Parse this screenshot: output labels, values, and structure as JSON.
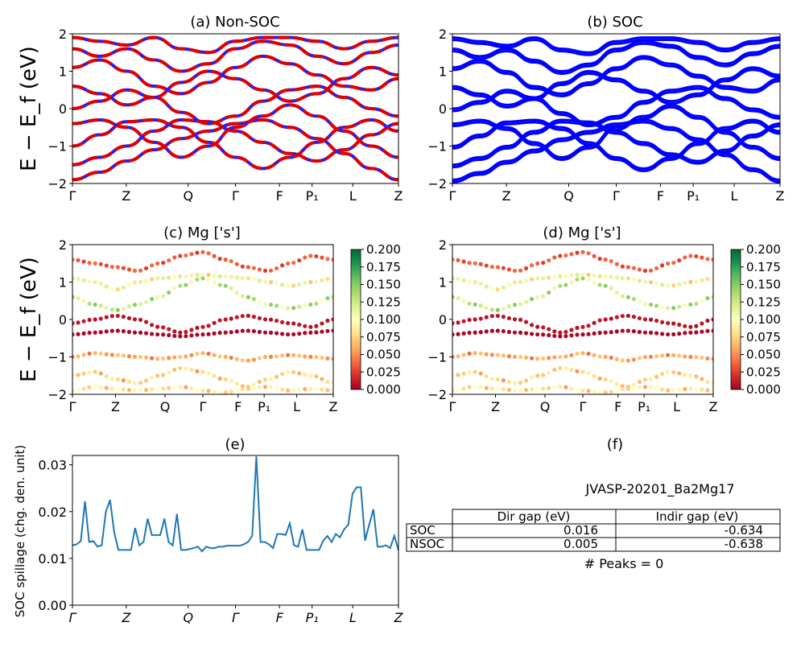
{
  "figure": {
    "ylabel": "E − E_f (eV)",
    "kpath_labels": [
      "Γ",
      "Z",
      "Q",
      "Γ",
      "F",
      "P₁",
      "L",
      "Z"
    ]
  },
  "colors": {
    "nonsoc_up": "#e00000",
    "nonsoc_dn": "#2020ff",
    "soc": "#0000ff",
    "line_e": "#1f77b4",
    "colormap": [
      "#a50026",
      "#d73027",
      "#f46d43",
      "#fdae61",
      "#fee08b",
      "#ffffbf",
      "#d9ef8b",
      "#a6d96a",
      "#66bd63",
      "#1a9850",
      "#006837"
    ]
  },
  "chart_data": [
    {
      "id": "a",
      "type": "line",
      "title": "(a) Non-SOC",
      "ylim": [
        -2,
        2
      ],
      "yticks": [
        -2,
        -1,
        0,
        1,
        2
      ],
      "series": [
        {
          "y": [
            -1.9,
            -1.7,
            -1.4,
            -1.1,
            -0.8,
            -0.6,
            -0.4,
            -0.3,
            -0.5,
            -0.8,
            -1.2,
            -1.6,
            -1.9
          ]
        },
        {
          "y": [
            -1.5,
            -1.3,
            -1.0,
            -0.6,
            -0.3,
            -0.35,
            -0.6,
            -0.9,
            -1.2,
            -1.4,
            -1.1,
            -0.7,
            -0.4
          ]
        },
        {
          "y": [
            -1.0,
            -0.7,
            -0.35,
            -0.3,
            -0.5,
            -0.9,
            -1.3,
            -1.6,
            -1.3,
            -0.9,
            -0.5,
            -0.3,
            -0.6
          ]
        },
        {
          "y": [
            -0.4,
            -0.3,
            -0.5,
            -0.9,
            -1.3,
            -1.0,
            -0.5,
            -0.2,
            0.1,
            -0.2,
            -0.6,
            -1.0,
            -1.3
          ]
        },
        {
          "y": [
            0.0,
            0.2,
            0.5,
            0.3,
            -0.1,
            -0.4,
            -0.2,
            0.2,
            0.5,
            0.6,
            0.3,
            0.0,
            -0.2
          ]
        },
        {
          "y": [
            0.6,
            0.4,
            0.1,
            0.3,
            0.7,
            1.0,
            0.8,
            0.5,
            0.2,
            0.4,
            0.8,
            1.1,
            0.9
          ]
        },
        {
          "y": [
            1.1,
            1.3,
            1.0,
            0.6,
            0.4,
            0.7,
            1.1,
            1.4,
            1.2,
            0.9,
            0.6,
            0.5,
            0.8
          ]
        },
        {
          "y": [
            1.6,
            1.4,
            1.6,
            1.3,
            1.0,
            1.2,
            1.6,
            1.8,
            1.7,
            1.4,
            1.2,
            1.5,
            1.7
          ]
        },
        {
          "y": [
            1.9,
            1.8,
            1.7,
            1.9,
            1.6,
            1.5,
            1.8,
            1.9,
            1.9,
            1.8,
            1.6,
            1.8,
            1.9
          ]
        }
      ]
    },
    {
      "id": "b",
      "type": "line",
      "title": "(b) SOC",
      "ylim": [
        -2,
        2
      ],
      "yticks": [
        -2,
        -1,
        0,
        1,
        2
      ],
      "series": [
        {
          "y": [
            -1.9,
            -1.7,
            -1.4,
            -1.1,
            -0.8,
            -0.6,
            -0.4,
            -0.3,
            -0.5,
            -0.8,
            -1.2,
            -1.6,
            -1.9
          ]
        },
        {
          "y": [
            -1.5,
            -1.3,
            -1.0,
            -0.6,
            -0.3,
            -0.35,
            -0.6,
            -0.9,
            -1.2,
            -1.4,
            -1.1,
            -0.7,
            -0.4
          ]
        },
        {
          "y": [
            -1.0,
            -0.7,
            -0.35,
            -0.3,
            -0.5,
            -0.9,
            -1.3,
            -1.6,
            -1.3,
            -0.9,
            -0.5,
            -0.3,
            -0.6
          ]
        },
        {
          "y": [
            -0.4,
            -0.3,
            -0.5,
            -0.9,
            -1.3,
            -1.0,
            -0.5,
            -0.2,
            0.1,
            -0.2,
            -0.6,
            -1.0,
            -1.3
          ]
        },
        {
          "y": [
            0.0,
            0.2,
            0.5,
            0.3,
            -0.1,
            -0.4,
            -0.2,
            0.2,
            0.5,
            0.6,
            0.3,
            0.0,
            -0.2
          ]
        },
        {
          "y": [
            0.6,
            0.4,
            0.1,
            0.3,
            0.7,
            1.0,
            0.8,
            0.5,
            0.2,
            0.4,
            0.8,
            1.1,
            0.9
          ]
        },
        {
          "y": [
            1.1,
            1.3,
            1.0,
            0.6,
            0.4,
            0.7,
            1.1,
            1.4,
            1.2,
            0.9,
            0.6,
            0.5,
            0.8
          ]
        },
        {
          "y": [
            1.6,
            1.4,
            1.6,
            1.3,
            1.0,
            1.2,
            1.6,
            1.8,
            1.7,
            1.4,
            1.2,
            1.5,
            1.7
          ]
        },
        {
          "y": [
            1.9,
            1.8,
            1.7,
            1.9,
            1.6,
            1.5,
            1.8,
            1.9,
            1.9,
            1.8,
            1.6,
            1.8,
            1.9
          ]
        }
      ]
    },
    {
      "id": "c",
      "type": "scatter",
      "title": "(c)  Mg ['s']",
      "ylim": [
        -2,
        2
      ],
      "yticks": [
        -2,
        -1,
        0,
        1,
        2
      ],
      "colorbar_ticks": [
        "0.200",
        "0.175",
        "0.150",
        "0.125",
        "0.100",
        "0.075",
        "0.050",
        "0.025",
        "0.000"
      ],
      "clim": [
        0,
        0.2
      ],
      "bands": [
        {
          "y": [
            -0.4,
            -0.35,
            -0.3,
            -0.35,
            -0.4,
            -0.45,
            -0.4,
            -0.35,
            -0.3,
            -0.35,
            -0.4,
            -0.35,
            -0.3
          ],
          "w": 0.003
        },
        {
          "y": [
            -0.1,
            0.0,
            0.1,
            0.0,
            -0.2,
            -0.35,
            -0.2,
            0.0,
            0.1,
            0.0,
            -0.1,
            -0.2,
            0.0
          ],
          "w": 0.01
        },
        {
          "y": [
            0.6,
            0.4,
            0.25,
            0.4,
            0.6,
            0.9,
            1.1,
            0.9,
            0.6,
            0.4,
            0.3,
            0.4,
            0.6
          ],
          "w": 0.15
        },
        {
          "y": [
            1.1,
            1.0,
            0.8,
            1.0,
            1.1,
            1.15,
            1.2,
            1.15,
            1.1,
            1.0,
            0.9,
            1.0,
            1.1
          ],
          "w": 0.12
        },
        {
          "y": [
            1.6,
            1.5,
            1.4,
            1.3,
            1.5,
            1.7,
            1.8,
            1.6,
            1.4,
            1.3,
            1.5,
            1.7,
            1.6
          ],
          "w": 0.04
        },
        {
          "y": [
            -1.0,
            -0.9,
            -0.95,
            -1.0,
            -1.05,
            -1.0,
            -0.9,
            -1.0,
            -1.1,
            -1.0,
            -0.95,
            -1.0,
            -1.05
          ],
          "w": 0.07
        },
        {
          "y": [
            -1.5,
            -1.4,
            -1.6,
            -1.7,
            -1.5,
            -1.3,
            -1.4,
            -1.6,
            -1.8,
            -1.6,
            -1.4,
            -1.5,
            -1.7
          ],
          "w": 0.09
        },
        {
          "y": [
            -1.9,
            -1.8,
            -1.85,
            -1.9,
            -1.85,
            -1.8,
            -1.9,
            -1.95,
            -1.85,
            -1.8,
            -1.9,
            -1.85,
            -1.9
          ],
          "w": 0.1
        }
      ]
    },
    {
      "id": "d",
      "type": "scatter",
      "title": "(d) Mg ['s']",
      "ylim": [
        -2,
        2
      ],
      "yticks": [
        -2,
        -1,
        0,
        1,
        2
      ],
      "colorbar_ticks": [
        "0.200",
        "0.175",
        "0.150",
        "0.125",
        "0.100",
        "0.075",
        "0.050",
        "0.025",
        "0.000"
      ],
      "clim": [
        0,
        0.2
      ],
      "bands": [
        {
          "y": [
            -0.4,
            -0.35,
            -0.3,
            -0.35,
            -0.4,
            -0.45,
            -0.4,
            -0.35,
            -0.3,
            -0.35,
            -0.4,
            -0.35,
            -0.3
          ],
          "w": 0.003
        },
        {
          "y": [
            -0.1,
            0.0,
            0.1,
            0.0,
            -0.2,
            -0.35,
            -0.2,
            0.0,
            0.1,
            0.0,
            -0.1,
            -0.2,
            0.0
          ],
          "w": 0.01
        },
        {
          "y": [
            0.6,
            0.4,
            0.25,
            0.4,
            0.6,
            0.9,
            1.1,
            0.9,
            0.6,
            0.4,
            0.3,
            0.4,
            0.6
          ],
          "w": 0.15
        },
        {
          "y": [
            1.1,
            1.0,
            0.8,
            1.0,
            1.1,
            1.15,
            1.2,
            1.15,
            1.1,
            1.0,
            0.9,
            1.0,
            1.1
          ],
          "w": 0.12
        },
        {
          "y": [
            1.6,
            1.5,
            1.4,
            1.3,
            1.5,
            1.7,
            1.8,
            1.6,
            1.4,
            1.3,
            1.5,
            1.7,
            1.6
          ],
          "w": 0.04
        },
        {
          "y": [
            -1.0,
            -0.9,
            -0.95,
            -1.0,
            -1.05,
            -1.0,
            -0.9,
            -1.0,
            -1.1,
            -1.0,
            -0.95,
            -1.0,
            -1.05
          ],
          "w": 0.07
        },
        {
          "y": [
            -1.5,
            -1.4,
            -1.6,
            -1.7,
            -1.5,
            -1.3,
            -1.4,
            -1.6,
            -1.8,
            -1.6,
            -1.4,
            -1.5,
            -1.7
          ],
          "w": 0.09
        },
        {
          "y": [
            -1.9,
            -1.8,
            -1.85,
            -1.9,
            -1.85,
            -1.8,
            -1.9,
            -1.95,
            -1.85,
            -1.8,
            -1.9,
            -1.85,
            -1.9
          ],
          "w": 0.1
        }
      ]
    },
    {
      "id": "e",
      "type": "line",
      "title": "(e)",
      "ylabel": "SOC spillage (chg. den. unit)",
      "ylim": [
        0,
        0.032
      ],
      "yticks": [
        "0.00",
        "0.01",
        "0.02",
        "0.03"
      ],
      "kpath_labels": [
        "Γ",
        "Z",
        "Q",
        "Γ",
        "F",
        "P₁",
        "L",
        "Z"
      ],
      "values": [
        0.0128,
        0.013,
        0.0137,
        0.0222,
        0.0135,
        0.0137,
        0.0125,
        0.0128,
        0.02,
        0.0225,
        0.0155,
        0.0118,
        0.0118,
        0.0118,
        0.0118,
        0.0165,
        0.0128,
        0.0135,
        0.0185,
        0.015,
        0.015,
        0.015,
        0.0185,
        0.0135,
        0.0128,
        0.0195,
        0.0118,
        0.0118,
        0.012,
        0.0122,
        0.0125,
        0.0115,
        0.0125,
        0.0122,
        0.0122,
        0.0125,
        0.0125,
        0.0127,
        0.0127,
        0.0127,
        0.0127,
        0.013,
        0.0135,
        0.0148,
        0.0318,
        0.0135,
        0.0135,
        0.013,
        0.0122,
        0.0152,
        0.0152,
        0.015,
        0.0175,
        0.0128,
        0.0125,
        0.0162,
        0.0118,
        0.0118,
        0.0118,
        0.0118,
        0.0138,
        0.0148,
        0.0135,
        0.0152,
        0.0145,
        0.0162,
        0.0172,
        0.0238,
        0.0252,
        0.0252,
        0.0138,
        0.0172,
        0.0205,
        0.0125,
        0.0125,
        0.0128,
        0.0122,
        0.0148,
        0.0118
      ]
    }
  ],
  "panel_f": {
    "title": "(f)",
    "jid": "JVASP-20201_Ba2Mg17",
    "headers": [
      "",
      "Dir gap (eV)",
      "Indir gap (eV)"
    ],
    "rows": [
      [
        "SOC",
        "0.016",
        "-0.634"
      ],
      [
        "NSOC",
        "0.005",
        "-0.638"
      ]
    ],
    "peaks": "# Peaks = 0"
  }
}
